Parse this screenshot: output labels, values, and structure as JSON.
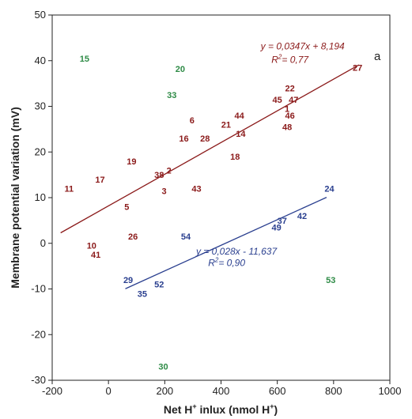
{
  "chart_data": {
    "type": "scatter",
    "panel_label": "a",
    "xlabel_prefix": "Net H",
    "xlabel_suffix": " inlux (nmol H",
    "xlabel_end": ")",
    "ylabel": "Membrane potential variation (mV)",
    "xlim": [
      -200,
      1000
    ],
    "ylim": [
      -30,
      50
    ],
    "x_ticks": [
      "-200",
      "0",
      "200",
      "400",
      "600",
      "800",
      "1000"
    ],
    "y_ticks": [
      "-30",
      "-20",
      "-10",
      "0",
      "10",
      "20",
      "30",
      "40",
      "50"
    ],
    "x_tick_values": [
      -200,
      0,
      200,
      400,
      600,
      800,
      1000
    ],
    "y_tick_values": [
      -30,
      -20,
      -10,
      0,
      10,
      20,
      30,
      40,
      50
    ],
    "colors": {
      "red": "#8b1a1a",
      "blue": "#2a3f8f",
      "green": "#2e8b46"
    },
    "points": [
      {
        "label": "15",
        "x": -85,
        "y": 40.5,
        "group": "green"
      },
      {
        "label": "20",
        "x": 255,
        "y": 38.2,
        "group": "green"
      },
      {
        "label": "33",
        "x": 225,
        "y": 32.5,
        "group": "green"
      },
      {
        "label": "30",
        "x": 195,
        "y": -27,
        "group": "green"
      },
      {
        "label": "53",
        "x": 790,
        "y": -8,
        "group": "green"
      },
      {
        "label": "27",
        "x": 885,
        "y": 38.5,
        "group": "red"
      },
      {
        "label": "22",
        "x": 645,
        "y": 34,
        "group": "red"
      },
      {
        "label": "45",
        "x": 600,
        "y": 31.5,
        "group": "red"
      },
      {
        "label": "47",
        "x": 658,
        "y": 31.5,
        "group": "red"
      },
      {
        "label": "1",
        "x": 635,
        "y": 29.5,
        "group": "red"
      },
      {
        "label": "46",
        "x": 645,
        "y": 28,
        "group": "red"
      },
      {
        "label": "48",
        "x": 635,
        "y": 25.5,
        "group": "red"
      },
      {
        "label": "6",
        "x": 297,
        "y": 27,
        "group": "red"
      },
      {
        "label": "44",
        "x": 465,
        "y": 28,
        "group": "red"
      },
      {
        "label": "21",
        "x": 418,
        "y": 26,
        "group": "red"
      },
      {
        "label": "14",
        "x": 470,
        "y": 24,
        "group": "red"
      },
      {
        "label": "16",
        "x": 268,
        "y": 23,
        "group": "red"
      },
      {
        "label": "28",
        "x": 343,
        "y": 23,
        "group": "red"
      },
      {
        "label": "18",
        "x": 450,
        "y": 19,
        "group": "red"
      },
      {
        "label": "19",
        "x": 82,
        "y": 18,
        "group": "red"
      },
      {
        "label": "38",
        "x": 180,
        "y": 15,
        "group": "red"
      },
      {
        "label": "2",
        "x": 215,
        "y": 16,
        "group": "red"
      },
      {
        "label": "17",
        "x": -30,
        "y": 14,
        "group": "red"
      },
      {
        "label": "11",
        "x": -140,
        "y": 12,
        "group": "red"
      },
      {
        "label": "43",
        "x": 313,
        "y": 12,
        "group": "red"
      },
      {
        "label": "3",
        "x": 198,
        "y": 11.5,
        "group": "red"
      },
      {
        "label": "5",
        "x": 65,
        "y": 8,
        "group": "red"
      },
      {
        "label": "26",
        "x": 87,
        "y": 1.5,
        "group": "red"
      },
      {
        "label": "10",
        "x": -60,
        "y": -0.5,
        "group": "red"
      },
      {
        "label": "41",
        "x": -45,
        "y": -2.5,
        "group": "red"
      },
      {
        "label": "24",
        "x": 785,
        "y": 12,
        "group": "blue"
      },
      {
        "label": "37",
        "x": 617,
        "y": 5,
        "group": "blue"
      },
      {
        "label": "42",
        "x": 688,
        "y": 6,
        "group": "blue"
      },
      {
        "label": "49",
        "x": 597,
        "y": 3.5,
        "group": "blue"
      },
      {
        "label": "54",
        "x": 275,
        "y": 1.5,
        "group": "blue"
      },
      {
        "label": "29",
        "x": 70,
        "y": -8,
        "group": "blue"
      },
      {
        "label": "52",
        "x": 180,
        "y": -9,
        "group": "blue"
      },
      {
        "label": "35",
        "x": 120,
        "y": -11,
        "group": "blue"
      }
    ],
    "fits": [
      {
        "group": "red",
        "slope": 0.0347,
        "intercept": 8.194,
        "x_start": -170,
        "x_end": 890,
        "eq_text": "y = 0,0347x + 8,194",
        "r2_prefix": "R",
        "r2_suffix": "= 0,77",
        "eq_x": 690,
        "eq_y": 42.5,
        "r2_x": 645,
        "r2_y": 39.5
      },
      {
        "group": "blue",
        "slope": 0.028,
        "intercept": -11.637,
        "x_start": 60,
        "x_end": 775,
        "eq_text": "y = 0,028x - 11,637",
        "r2_prefix": "R",
        "r2_suffix": "= 0,90",
        "eq_x": 455,
        "eq_y": -2.5,
        "r2_x": 420,
        "r2_y": -5
      }
    ]
  }
}
